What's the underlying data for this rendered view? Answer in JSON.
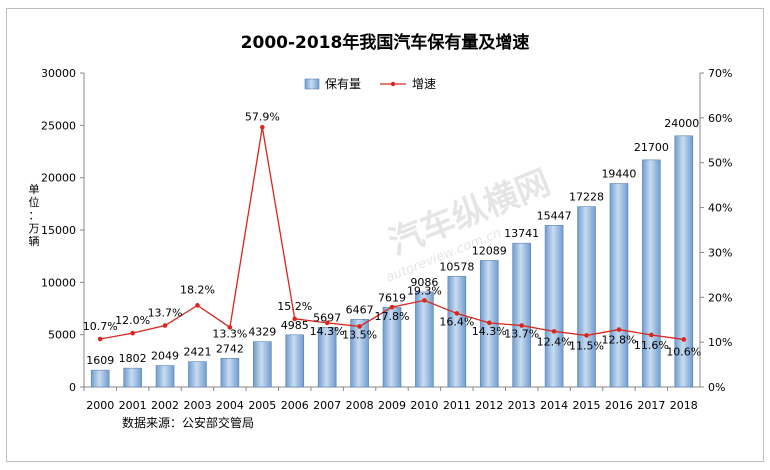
{
  "chart_data": {
    "type": "bar",
    "title": "2000-2018年我国汽车保有量及增速",
    "ylabel": "单位：万辆",
    "source": "数据来源：公安部交管局",
    "watermark": {
      "text_cn": "汽车纵横网",
      "text_en": "autoreview.com.cn"
    },
    "categories": [
      "2000",
      "2001",
      "2002",
      "2003",
      "2004",
      "2005",
      "2006",
      "2007",
      "2008",
      "2009",
      "2010",
      "2011",
      "2012",
      "2013",
      "2014",
      "2015",
      "2016",
      "2017",
      "2018"
    ],
    "series": [
      {
        "name": "保有量",
        "type": "bar",
        "axis": "left",
        "color": "#8fb4dc",
        "values": [
          1609,
          1802,
          2049,
          2421,
          2742,
          4329,
          4985,
          5697,
          6467,
          7619,
          9086,
          10578,
          12089,
          13741,
          15447,
          17228,
          19440,
          21700,
          24000
        ],
        "labels": [
          "1609",
          "1802",
          "2049",
          "2421",
          "2742",
          "4329",
          "4985",
          "5697",
          "6467",
          "7619",
          "9086",
          "10578",
          "12089",
          "13741",
          "15447",
          "17228",
          "19440",
          "21700",
          "24000"
        ]
      },
      {
        "name": "增速",
        "type": "line",
        "axis": "right",
        "color": "#d9261c",
        "values": [
          10.7,
          12.0,
          13.7,
          18.2,
          13.3,
          57.9,
          15.2,
          14.3,
          13.5,
          17.8,
          19.3,
          16.4,
          14.3,
          13.7,
          12.4,
          11.5,
          12.8,
          11.6,
          10.6
        ],
        "labels": [
          "10.7%",
          "12.0%",
          "13.7%",
          "18.2%",
          "13.3%",
          "57.9%",
          "15.2%",
          "14.3%",
          "13.5%",
          "17.8%",
          "19.3%",
          "16.4%",
          "14.3%",
          "13.7%",
          "12.4%",
          "11.5%",
          "12.8%",
          "11.6%",
          "10.6%"
        ]
      }
    ],
    "y_left": {
      "min": 0,
      "max": 30000,
      "ticks": [
        "0",
        "5000",
        "10000",
        "15000",
        "20000",
        "25000",
        "30000"
      ]
    },
    "y_right": {
      "min": 0,
      "max": 70,
      "ticks": [
        "0%",
        "10%",
        "20%",
        "30%",
        "40%",
        "50%",
        "60%",
        "70%"
      ]
    },
    "grid": false,
    "legend_position": "top"
  }
}
